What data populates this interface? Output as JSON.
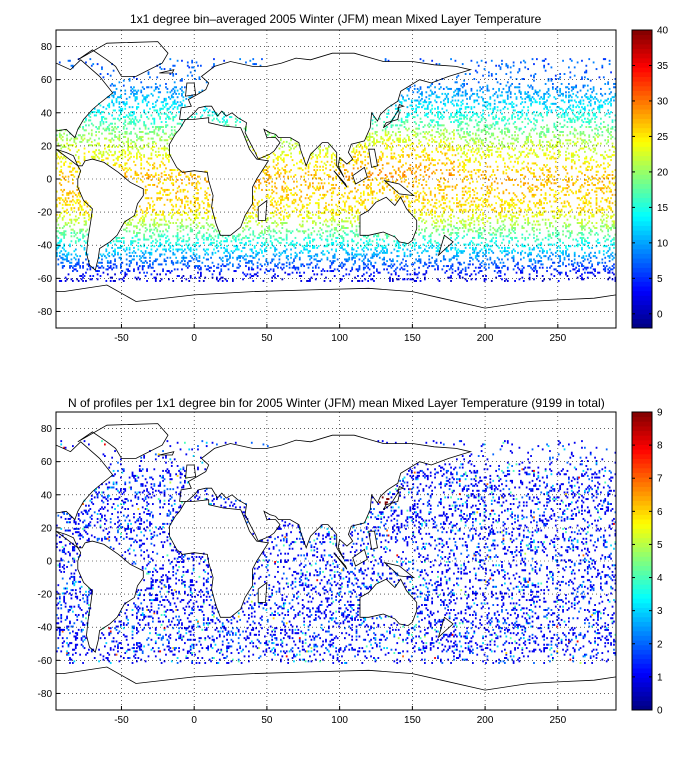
{
  "chart_data": [
    {
      "type": "heatmap",
      "title": "1x1 degree bin–averaged 2005 Winter (JFM) mean Mixed Layer Temperature",
      "x_ticks": [
        -50,
        0,
        50,
        100,
        150,
        200,
        250
      ],
      "y_ticks": [
        80,
        60,
        40,
        20,
        0,
        -20,
        -40,
        -60,
        -80
      ],
      "xlim": [
        -95,
        290
      ],
      "ylim": [
        -90,
        90
      ],
      "grid": true,
      "colormap": "jet",
      "colorbar": {
        "range": [
          -2,
          40
        ],
        "ticks": [
          0,
          5,
          10,
          15,
          20,
          25,
          30,
          35,
          40
        ]
      },
      "zonal_profile": [
        {
          "lat": 60,
          "value": 7
        },
        {
          "lat": 40,
          "value": 14
        },
        {
          "lat": 20,
          "value": 22
        },
        {
          "lat": 0,
          "value": 27
        },
        {
          "lat": -20,
          "value": 25
        },
        {
          "lat": -40,
          "value": 14
        },
        {
          "lat": -60,
          "value": 2
        }
      ]
    },
    {
      "type": "heatmap",
      "title": "N of profiles per 1x1 degree bin for 2005 Winter (JFM) mean Mixed Layer Temperature  (9199 in total)",
      "x_ticks": [
        -50,
        0,
        50,
        100,
        150,
        200,
        250
      ],
      "y_ticks": [
        80,
        60,
        40,
        20,
        0,
        -20,
        -40,
        -60,
        -80
      ],
      "xlim": [
        -95,
        290
      ],
      "ylim": [
        -90,
        90
      ],
      "grid": true,
      "colormap": "jet",
      "colorbar": {
        "range": [
          0,
          9
        ],
        "ticks": [
          0,
          1,
          2,
          3,
          4,
          5,
          6,
          7,
          8,
          9
        ]
      },
      "typical_count": 1,
      "max_count": 9
    }
  ]
}
